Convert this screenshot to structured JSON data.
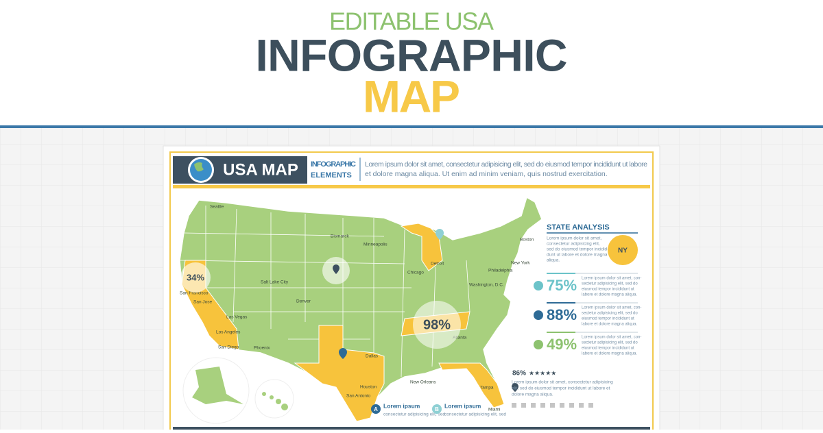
{
  "header": {
    "kicker": "EDITABLE USA",
    "title": "INFOGRAPHIC",
    "title_bottom": "MAP"
  },
  "card": {
    "badge": "USA MAP",
    "heading_1": "INFOGRAPHIC",
    "heading_2": "ELEMENTS",
    "intro": [
      "Lorem ipsum dolor sit amet, consectetur adipisicing elit, sed do eiusmod tempor incididunt ut labore",
      "et dolore magna aliqua. Ut enim ad minim veniam, quis nostrud exercitation."
    ]
  },
  "map": {
    "cities": [
      "Seattle",
      "San Francisco",
      "San Jose",
      "Los Angeles",
      "San Diego",
      "Las Vegas",
      "Phoenix",
      "Salt Lake City",
      "Denver",
      "Bismarck",
      "Minneapolis",
      "Chicago",
      "Detroit",
      "Dallas",
      "Houston",
      "San Antonio",
      "New Orleans",
      "Atlanta",
      "Tampa",
      "Miami",
      "Washington, D.C.",
      "Philadelphia",
      "New York",
      "Boston"
    ],
    "callout_west": "34%",
    "callout_south": "98%",
    "legend": [
      {
        "marker": "A",
        "title": "Lorem ipsum",
        "text": "consectetur adipisicing elit, sed"
      },
      {
        "marker": "B",
        "title": "Lorem ipsum",
        "text": "consectetur adipisicing elit, sed"
      }
    ]
  },
  "panel": {
    "title": "STATE ANALYSIS",
    "intro": [
      "Lorem ipsum dolor sit amet,",
      "consectetur adipisicing elit,",
      "sed do eiusmod tempor incidid-",
      "dunt ut labore et dolore magna",
      "aliqua."
    ],
    "state": "NY",
    "stats": [
      {
        "value": "75%",
        "color": "#6cc3c9"
      },
      {
        "value": "88%",
        "color": "#2e6b96"
      },
      {
        "value": "49%",
        "color": "#8dc26f"
      }
    ],
    "stat_text": [
      "Lorem ipsum dolor sit amet, con-",
      "sectetur adipisicing elit, sed do",
      "eiusmod tempor incididunt ut",
      "labore et dolore magna aliqua."
    ],
    "rating": "86%",
    "stars": "★★★★★",
    "rating_text": [
      "Lorem ipsum dolor sit amet, consectetur adipisicing",
      "elit, sed do eiusmod tempor incididunt ut labore et",
      "dolore magna aliqua."
    ]
  }
}
